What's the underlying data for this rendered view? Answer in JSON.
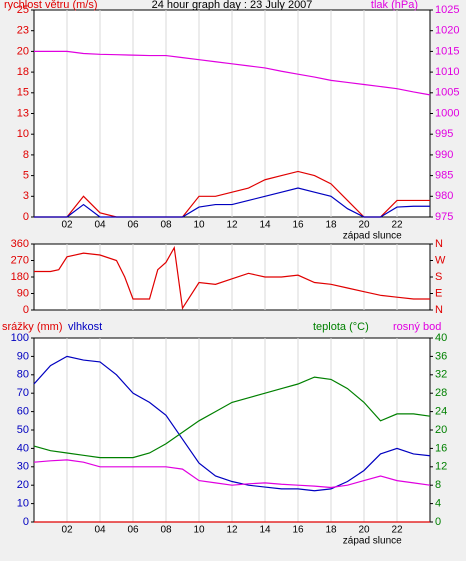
{
  "chart_data": [
    {
      "type": "line",
      "title": "24 hour graph day : 23 July 2007",
      "ylabel": "rychlost větru (m/s)",
      "y2label": "tlak (hPa)",
      "ycolor": "#e00000",
      "y2color": "#e000e0",
      "xlim": [
        0,
        24
      ],
      "xticks": [
        {
          "value": 2,
          "label": "02"
        },
        {
          "value": 4,
          "label": "04"
        },
        {
          "value": 6,
          "label": "06"
        },
        {
          "value": 8,
          "label": "08"
        },
        10,
        12,
        14,
        16,
        18,
        20,
        22
      ],
      "ylim": [
        0,
        25
      ],
      "yticks": [
        0,
        {
          "value": 2.5,
          "label": "3"
        },
        5,
        {
          "value": 7.5,
          "label": "8"
        },
        10,
        {
          "value": 12.5,
          "label": "13"
        },
        15,
        {
          "value": 17.5,
          "label": "18"
        },
        20,
        {
          "value": 22.5,
          "label": "23"
        },
        25
      ],
      "y2lim": [
        975,
        1025
      ],
      "y2ticks": [
        975,
        980,
        985,
        990,
        995,
        1000,
        1005,
        1010,
        1015,
        1020,
        1025
      ],
      "annotation": {
        "text": "západ slunce",
        "x": 20.5
      },
      "x": [
        0,
        1,
        2,
        3,
        4,
        5,
        6,
        7,
        8,
        9,
        10,
        11,
        12,
        13,
        14,
        15,
        16,
        17,
        18,
        19,
        20,
        21,
        22,
        23,
        24
      ],
      "series": [
        {
          "color": "#e00000",
          "axis": "y",
          "values": [
            0,
            0,
            0,
            2.5,
            0.5,
            0,
            0,
            0,
            0,
            0,
            2.5,
            2.5,
            3,
            3.5,
            4.5,
            5,
            5.5,
            5,
            4,
            2,
            0,
            0,
            2,
            2,
            2
          ]
        },
        {
          "color": "#0000c0",
          "axis": "y",
          "values": [
            0,
            0,
            0,
            1.5,
            0,
            0,
            0,
            0,
            0,
            0,
            1.2,
            1.5,
            1.5,
            2,
            2.5,
            3,
            3.5,
            3,
            2.5,
            1,
            0,
            0,
            1.2,
            1.3,
            1.3
          ]
        },
        {
          "color": "#e000e0",
          "axis": "y2",
          "values": [
            1015,
            1015,
            1015,
            1014.5,
            1014.3,
            1014.2,
            1014.1,
            1014,
            1014,
            1013.5,
            1013,
            1012.5,
            1012,
            1011.5,
            1011,
            1010.2,
            1009.5,
            1008.8,
            1008,
            1007.5,
            1007,
            1006.5,
            1006,
            1005.2,
            1004.5
          ]
        }
      ]
    },
    {
      "type": "line",
      "ycolor": "#e00000",
      "y2color": "#e00000",
      "xlim": [
        0,
        24
      ],
      "ylim": [
        0,
        360
      ],
      "yticks": [
        0,
        90,
        180,
        270,
        360
      ],
      "y2lim": [
        0,
        360
      ],
      "y2ticks": [
        {
          "value": 0,
          "label": "N"
        },
        {
          "value": 90,
          "label": "E"
        },
        {
          "value": 180,
          "label": "S"
        },
        {
          "value": 270,
          "label": "W"
        },
        {
          "value": 360,
          "label": "N"
        }
      ],
      "x": [
        0,
        1,
        1.5,
        2,
        3,
        4,
        5,
        5.5,
        6,
        7,
        7.5,
        8,
        8.5,
        9,
        10,
        11,
        12,
        13,
        14,
        15,
        16,
        17,
        18,
        19,
        20,
        21,
        22,
        23,
        24
      ],
      "series": [
        {
          "color": "#e00000",
          "axis": "y",
          "values": [
            210,
            210,
            220,
            290,
            310,
            300,
            270,
            180,
            60,
            60,
            220,
            260,
            340,
            10,
            150,
            140,
            170,
            200,
            180,
            180,
            190,
            150,
            140,
            120,
            100,
            80,
            70,
            60,
            60
          ]
        }
      ]
    },
    {
      "type": "line",
      "ycolor": "#0000c0",
      "y2color": "#008000",
      "xlim": [
        0,
        24
      ],
      "xticks": [
        {
          "value": 2,
          "label": "02"
        },
        {
          "value": 4,
          "label": "04"
        },
        {
          "value": 6,
          "label": "06"
        },
        {
          "value": 8,
          "label": "08"
        },
        10,
        12,
        14,
        16,
        18,
        20,
        22
      ],
      "ylim": [
        0,
        100
      ],
      "yticks": [
        0,
        10,
        20,
        30,
        40,
        50,
        60,
        70,
        80,
        90,
        100
      ],
      "y2lim": [
        0,
        40
      ],
      "y2ticks": [
        0,
        4,
        8,
        12,
        16,
        20,
        24,
        28,
        32,
        36,
        40
      ],
      "annotation": {
        "text": "západ slunce",
        "x": 20.5
      },
      "x": [
        0,
        1,
        2,
        3,
        4,
        5,
        6,
        7,
        8,
        9,
        10,
        11,
        12,
        13,
        14,
        15,
        16,
        17,
        18,
        19,
        20,
        21,
        22,
        23,
        24
      ],
      "series": [
        {
          "name": "srážky (mm)",
          "color": "#e00000",
          "axis": "y",
          "values": [
            0,
            0,
            0,
            0,
            0,
            0,
            0,
            0,
            0,
            0,
            0,
            0,
            0,
            0,
            0,
            0,
            0,
            0,
            0,
            0,
            0,
            0,
            0,
            0,
            0
          ]
        },
        {
          "name": "vlhkost",
          "color": "#0000c0",
          "axis": "y",
          "values": [
            75,
            85,
            90,
            88,
            87,
            80,
            70,
            65,
            58,
            45,
            32,
            25,
            22,
            20,
            19,
            18,
            18,
            17,
            18,
            22,
            28,
            37,
            40,
            37,
            36
          ]
        },
        {
          "name": "teplota (°C)",
          "color": "#008000",
          "axis": "y2",
          "values": [
            16.5,
            15.5,
            15,
            14.5,
            14,
            14,
            14,
            15,
            17,
            19.5,
            22,
            24,
            26,
            27,
            28,
            29,
            30,
            31.5,
            31,
            29,
            26,
            22,
            23.5,
            23.5,
            23
          ]
        },
        {
          "name": "rosný bod",
          "color": "#e000e0",
          "axis": "y2",
          "values": [
            13,
            13.3,
            13.5,
            13,
            12,
            12,
            12,
            12,
            12,
            11.5,
            9,
            8.5,
            8,
            8.3,
            8.5,
            8.2,
            8,
            7.8,
            7.5,
            8,
            9,
            10,
            9,
            8.5,
            8
          ]
        }
      ]
    }
  ]
}
